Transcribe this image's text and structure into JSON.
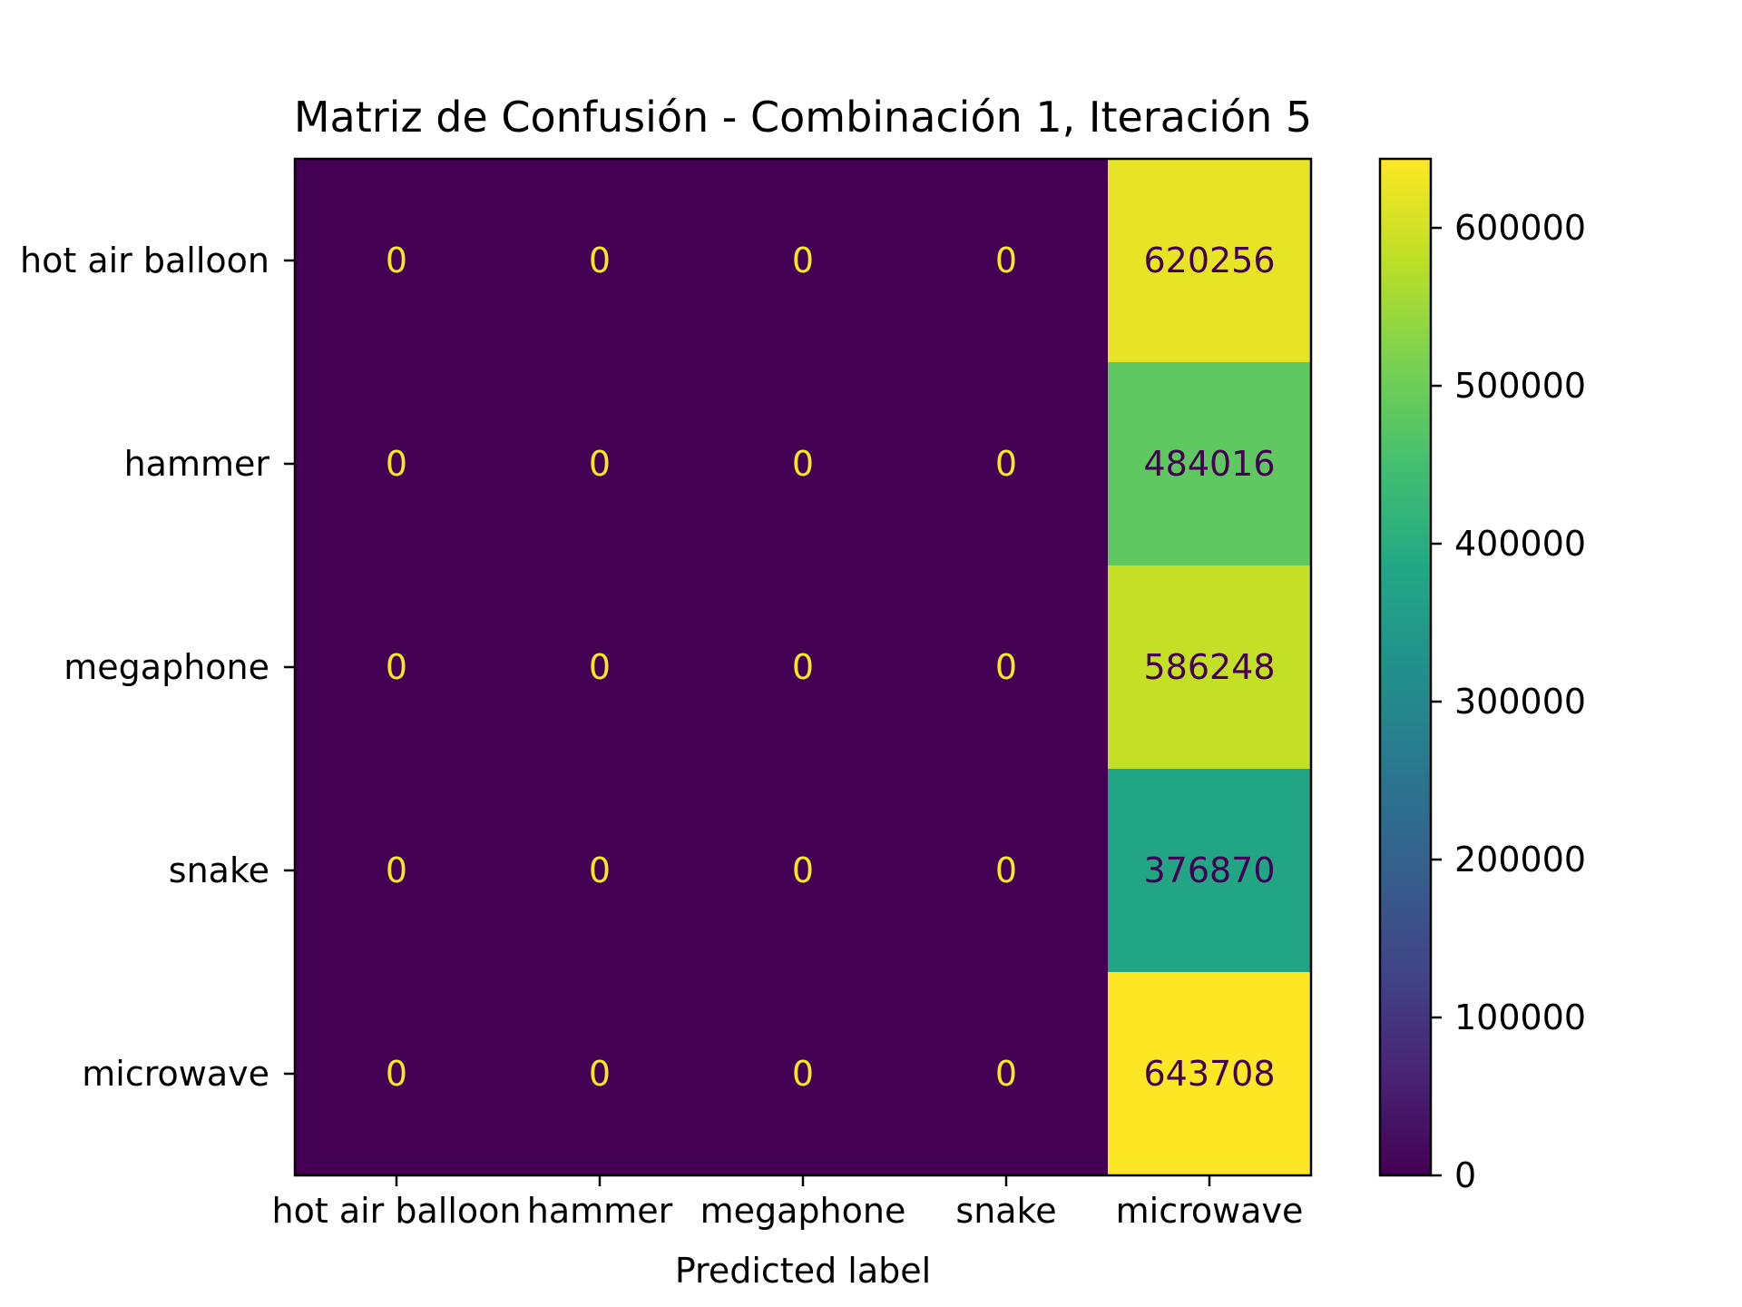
{
  "chart_data": {
    "type": "heatmap",
    "title": "Matriz de Confusión - Combinación 1, Iteración 5",
    "xlabel": "Predicted label",
    "ylabel": "",
    "row_labels": [
      "hot air balloon",
      "hammer",
      "megaphone",
      "snake",
      "microwave"
    ],
    "col_labels": [
      "hot air balloon",
      "hammer",
      "megaphone",
      "snake",
      "microwave"
    ],
    "values": [
      [
        0,
        0,
        0,
        0,
        620256
      ],
      [
        0,
        0,
        0,
        0,
        484016
      ],
      [
        0,
        0,
        0,
        0,
        586248
      ],
      [
        0,
        0,
        0,
        0,
        376870
      ],
      [
        0,
        0,
        0,
        0,
        643708
      ]
    ],
    "colormap": "viridis",
    "colorbar": {
      "range": [
        0,
        643708
      ],
      "ticks": [
        0,
        100000,
        200000,
        300000,
        400000,
        500000,
        600000
      ],
      "tick_labels": [
        "0",
        "100000",
        "200000",
        "300000",
        "400000",
        "500000",
        "600000"
      ]
    },
    "annotation_colors": {
      "light": "#fde725",
      "dark": "#440154"
    },
    "grid": false,
    "legend": "colorbar-right"
  }
}
